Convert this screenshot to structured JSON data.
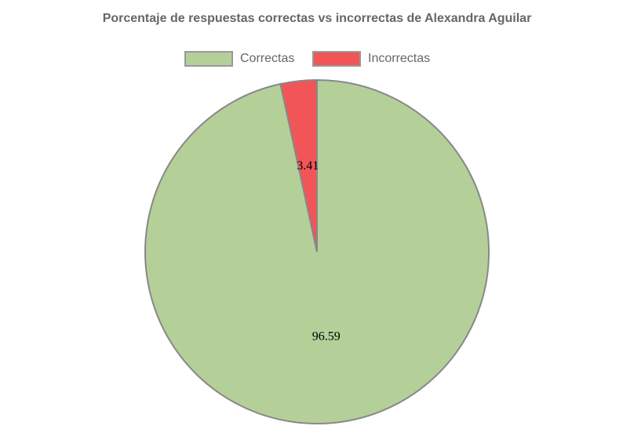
{
  "chart_data": {
    "type": "pie",
    "title": "Porcentaje de respuestas correctas vs incorrectas de Alexandra Aguilar",
    "categories": [
      "Correctas",
      "Incorrectas"
    ],
    "values": [
      96.59,
      3.41
    ],
    "colors": [
      "#b5cf99",
      "#f25557"
    ],
    "legend": "top"
  }
}
